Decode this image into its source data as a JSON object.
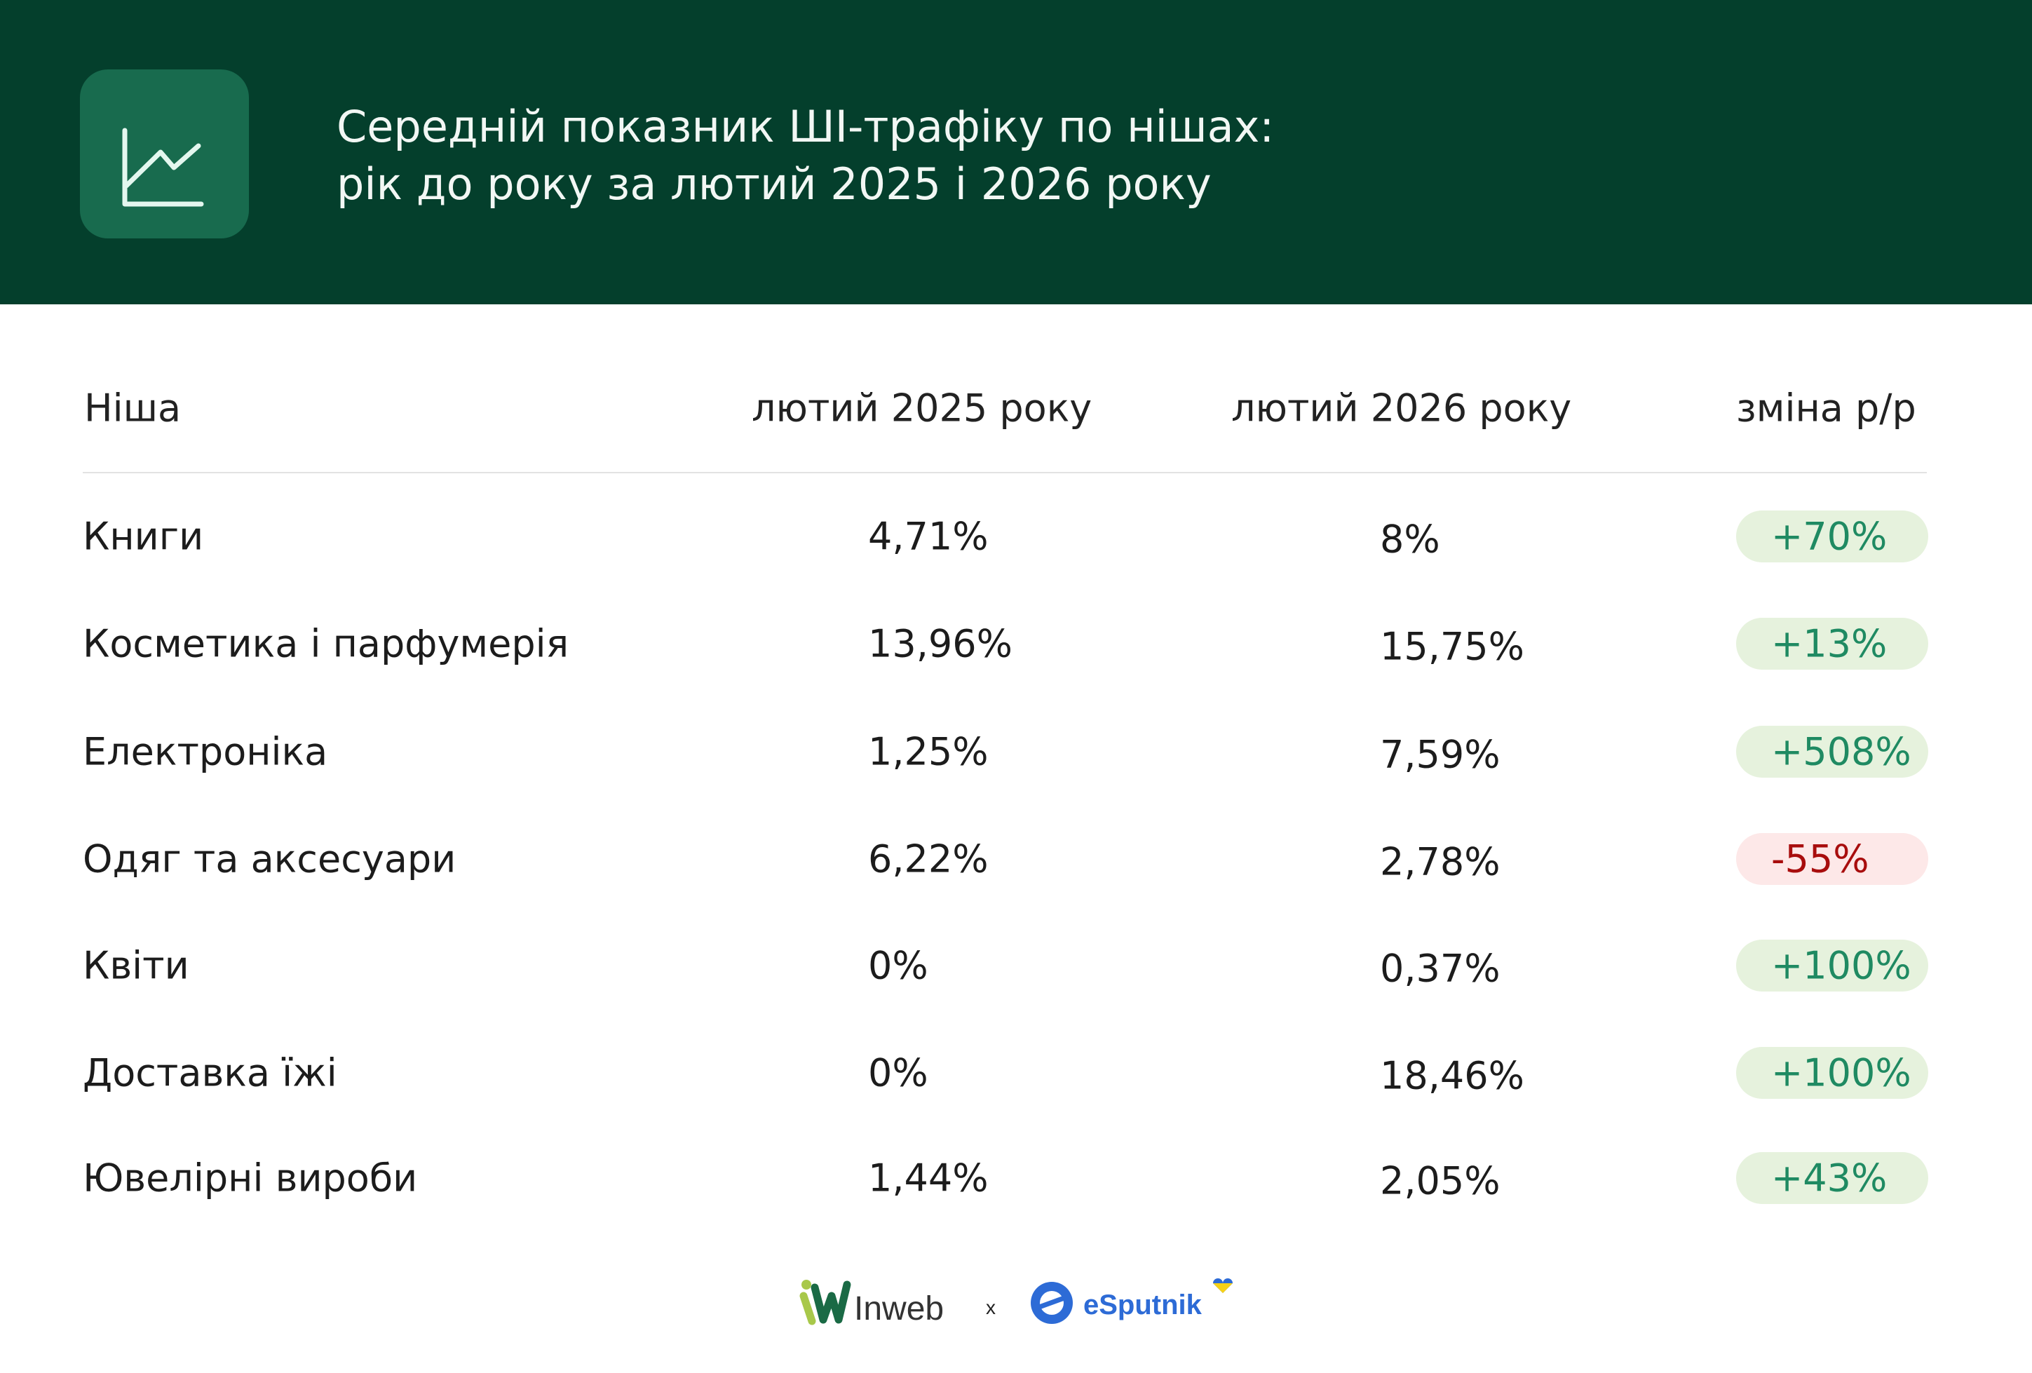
{
  "header": {
    "icon": "line-chart-icon",
    "title_line1": "Середній показник ШІ-трафіку по нішах:",
    "title_line2": "рік до року за лютий 2025 і 2026 року"
  },
  "table": {
    "columns": [
      "Ніша",
      "лютий 2025 року",
      "лютий 2026 року",
      "зміна р/р"
    ],
    "rows": [
      {
        "niche": "Книги",
        "feb2025": "4,71%",
        "feb2026": "8%",
        "change": "+70%",
        "trend": "up"
      },
      {
        "niche": "Косметика і парфумерія",
        "feb2025": "13,96%",
        "feb2026": "15,75%",
        "change": "+13%",
        "trend": "up"
      },
      {
        "niche": "Електроніка",
        "feb2025": "1,25%",
        "feb2026": "7,59%",
        "change": "+508%",
        "trend": "up"
      },
      {
        "niche": "Одяг та аксесуари",
        "feb2025": "6,22%",
        "feb2026": "2,78%",
        "change": "-55%",
        "trend": "down"
      },
      {
        "niche": "Квіти",
        "feb2025": "0%",
        "feb2026": "0,37%",
        "change": "+100%",
        "trend": "up"
      },
      {
        "niche": "Доставка їжі",
        "feb2025": "0%",
        "feb2026": "18,46%",
        "change": "+100%",
        "trend": "up"
      },
      {
        "niche": "Ювелірні вироби",
        "feb2025": "1,44%",
        "feb2026": "2,05%",
        "change": "+43%",
        "trend": "up"
      }
    ]
  },
  "footer": {
    "logo1": "Inweb",
    "separator": "x",
    "logo2": "eSputnik"
  },
  "colors": {
    "header_bg": "#043f2c",
    "icon_bg": "#186b4e",
    "positive_bg": "#e6f2dd",
    "positive_text": "#1f8a62",
    "negative_bg": "#fde8e8",
    "negative_text": "#a80d0d",
    "esputnik_blue": "#2d6bd6"
  }
}
